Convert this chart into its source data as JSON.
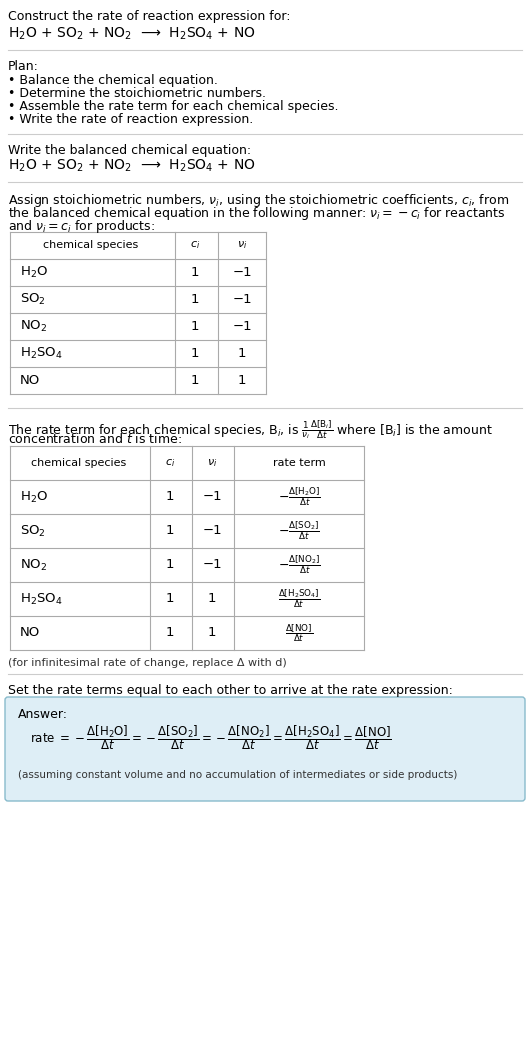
{
  "bg_color": "#ffffff",
  "title_text": "Construct the rate of reaction expression for:",
  "reaction_equation": "H$_2$O + SO$_2$ + NO$_2$  ⟶  H$_2$SO$_4$ + NO",
  "plan_header": "Plan:",
  "plan_items": [
    "• Balance the chemical equation.",
    "• Determine the stoichiometric numbers.",
    "• Assemble the rate term for each chemical species.",
    "• Write the rate of reaction expression."
  ],
  "balanced_header": "Write the balanced chemical equation:",
  "balanced_eq": "H$_2$O + SO$_2$ + NO$_2$  ⟶  H$_2$SO$_4$ + NO",
  "stoich_intro_1": "Assign stoichiometric numbers, $\\nu_i$, using the stoichiometric coefficients, $c_i$, from",
  "stoich_intro_2": "the balanced chemical equation in the following manner: $\\nu_i = -c_i$ for reactants",
  "stoich_intro_3": "and $\\nu_i = c_i$ for products:",
  "table1_headers": [
    "chemical species",
    "$c_i$",
    "$\\nu_i$"
  ],
  "table1_species": [
    "H$_2$O",
    "SO$_2$",
    "NO$_2$",
    "H$_2$SO$_4$",
    "NO"
  ],
  "table1_ci": [
    "1",
    "1",
    "1",
    "1",
    "1"
  ],
  "table1_nu": [
    "−1",
    "−1",
    "−1",
    "1",
    "1"
  ],
  "rate_term_intro_1": "The rate term for each chemical species, B$_i$, is $\\frac{1}{\\nu_i}\\frac{\\Delta[\\mathrm{B}_i]}{\\Delta t}$ where [B$_i$] is the amount",
  "rate_term_intro_2": "concentration and $t$ is time:",
  "table2_headers": [
    "chemical species",
    "$c_i$",
    "$\\nu_i$",
    "rate term"
  ],
  "table2_species": [
    "H$_2$O",
    "SO$_2$",
    "NO$_2$",
    "H$_2$SO$_4$",
    "NO"
  ],
  "table2_ci": [
    "1",
    "1",
    "1",
    "1",
    "1"
  ],
  "table2_nu": [
    "−1",
    "−1",
    "−1",
    "1",
    "1"
  ],
  "table2_rate": [
    "$-\\frac{\\Delta[\\mathrm{H_2O}]}{\\Delta t}$",
    "$-\\frac{\\Delta[\\mathrm{SO_2}]}{\\Delta t}$",
    "$-\\frac{\\Delta[\\mathrm{NO_2}]}{\\Delta t}$",
    "$\\frac{\\Delta[\\mathrm{H_2SO_4}]}{\\Delta t}$",
    "$\\frac{\\Delta[\\mathrm{NO}]}{\\Delta t}$"
  ],
  "infinitesimal_note": "(for infinitesimal rate of change, replace Δ with d)",
  "set_equal_text": "Set the rate terms equal to each other to arrive at the rate expression:",
  "answer_box_color": "#deeef6",
  "answer_label": "Answer:",
  "answer_footnote": "(assuming constant volume and no accumulation of intermediates or side products)",
  "text_color": "#000000",
  "table_border_color": "#aaaaaa",
  "separator_color": "#cccccc"
}
